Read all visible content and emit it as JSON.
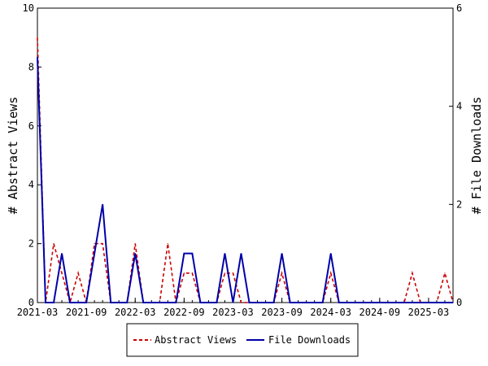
{
  "chart_data": {
    "type": "line",
    "title": "",
    "ylabel_left": "# Abstract Views",
    "ylabel_right": "# File Downloads",
    "xlabel": "",
    "x_ticks": [
      "2021-03",
      "2021-09",
      "2022-03",
      "2022-09",
      "2023-03",
      "2023-09",
      "2024-03",
      "2024-09",
      "2025-03"
    ],
    "ylim_left": [
      0,
      10
    ],
    "ylim_right": [
      0,
      6
    ],
    "y_ticks_left": [
      0,
      2,
      4,
      6,
      8,
      10
    ],
    "y_ticks_right": [
      0,
      2,
      4,
      6
    ],
    "grid": false,
    "legend_position": "bottom",
    "x_months": [
      "2021-03",
      "2021-04",
      "2021-05",
      "2021-06",
      "2021-07",
      "2021-08",
      "2021-09",
      "2021-10",
      "2021-11",
      "2021-12",
      "2022-01",
      "2022-02",
      "2022-03",
      "2022-04",
      "2022-05",
      "2022-06",
      "2022-07",
      "2022-08",
      "2022-09",
      "2022-10",
      "2022-11",
      "2022-12",
      "2023-01",
      "2023-02",
      "2023-03",
      "2023-04",
      "2023-05",
      "2023-06",
      "2023-07",
      "2023-08",
      "2023-09",
      "2023-10",
      "2023-11",
      "2023-12",
      "2024-01",
      "2024-02",
      "2024-03",
      "2024-04",
      "2024-05",
      "2024-06",
      "2024-07",
      "2024-08",
      "2024-09",
      "2024-10",
      "2024-11",
      "2024-12",
      "2025-01",
      "2025-02",
      "2025-03",
      "2025-04",
      "2025-05",
      "2025-06"
    ],
    "series": [
      {
        "name": "Abstract Views",
        "axis": "left",
        "color": "#cc0000",
        "dash": true,
        "values": [
          9,
          0,
          2,
          1,
          0,
          1,
          0,
          2,
          2,
          0,
          0,
          0,
          2,
          0,
          0,
          0,
          2,
          0,
          1,
          1,
          0,
          0,
          0,
          1,
          1,
          0,
          0,
          0,
          0,
          0,
          1,
          0,
          0,
          0,
          0,
          0,
          1,
          0,
          0,
          0,
          0,
          0,
          0,
          0,
          0,
          0,
          1,
          0,
          0,
          0,
          1,
          0
        ]
      },
      {
        "name": "File Downloads",
        "axis": "right",
        "color": "#0000aa",
        "dash": false,
        "values": [
          5,
          0,
          0,
          1,
          0,
          0,
          0,
          1,
          2,
          0,
          0,
          0,
          1,
          0,
          0,
          0,
          0,
          0,
          1,
          1,
          0,
          0,
          0,
          1,
          0,
          1,
          0,
          0,
          0,
          0,
          1,
          0,
          0,
          0,
          0,
          0,
          1,
          0,
          0,
          0,
          0,
          0,
          0,
          0,
          0,
          0,
          0,
          0,
          0,
          0,
          0,
          0
        ]
      }
    ]
  }
}
